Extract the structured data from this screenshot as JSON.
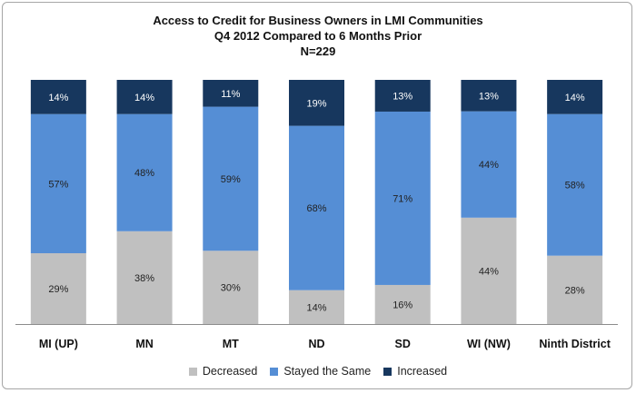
{
  "chart_data": {
    "type": "bar",
    "stacked": true,
    "title_lines": [
      "Access to Credit for Business Owners in LMI Communities",
      "Q4 2012 Compared to 6 Months Prior",
      "N=229"
    ],
    "categories": [
      "MI (UP)",
      "MN",
      "MT",
      "ND",
      "SD",
      "WI (NW)",
      "Ninth District"
    ],
    "series": [
      {
        "name": "Decreased",
        "color": "#c0c0c0",
        "values": [
          29,
          38,
          30,
          14,
          16,
          44,
          28
        ],
        "labels": [
          "29%",
          "38%",
          "30%",
          "14%",
          "16%",
          "44%",
          "28%"
        ]
      },
      {
        "name": "Stayed the Same",
        "color": "#558ed5",
        "values": [
          57,
          48,
          59,
          68,
          71,
          44,
          58
        ],
        "labels": [
          "57%",
          "48%",
          "59%",
          "68%",
          "71%",
          "44%",
          "58%"
        ]
      },
      {
        "name": "Increased",
        "color": "#17375e",
        "values": [
          14,
          14,
          11,
          19,
          13,
          13,
          14
        ],
        "labels": [
          "14%",
          "14%",
          "11%",
          "19%",
          "13%",
          "13%",
          "14%"
        ]
      }
    ],
    "ylim": [
      0,
      100
    ],
    "legend_position": "bottom",
    "grid": false
  }
}
